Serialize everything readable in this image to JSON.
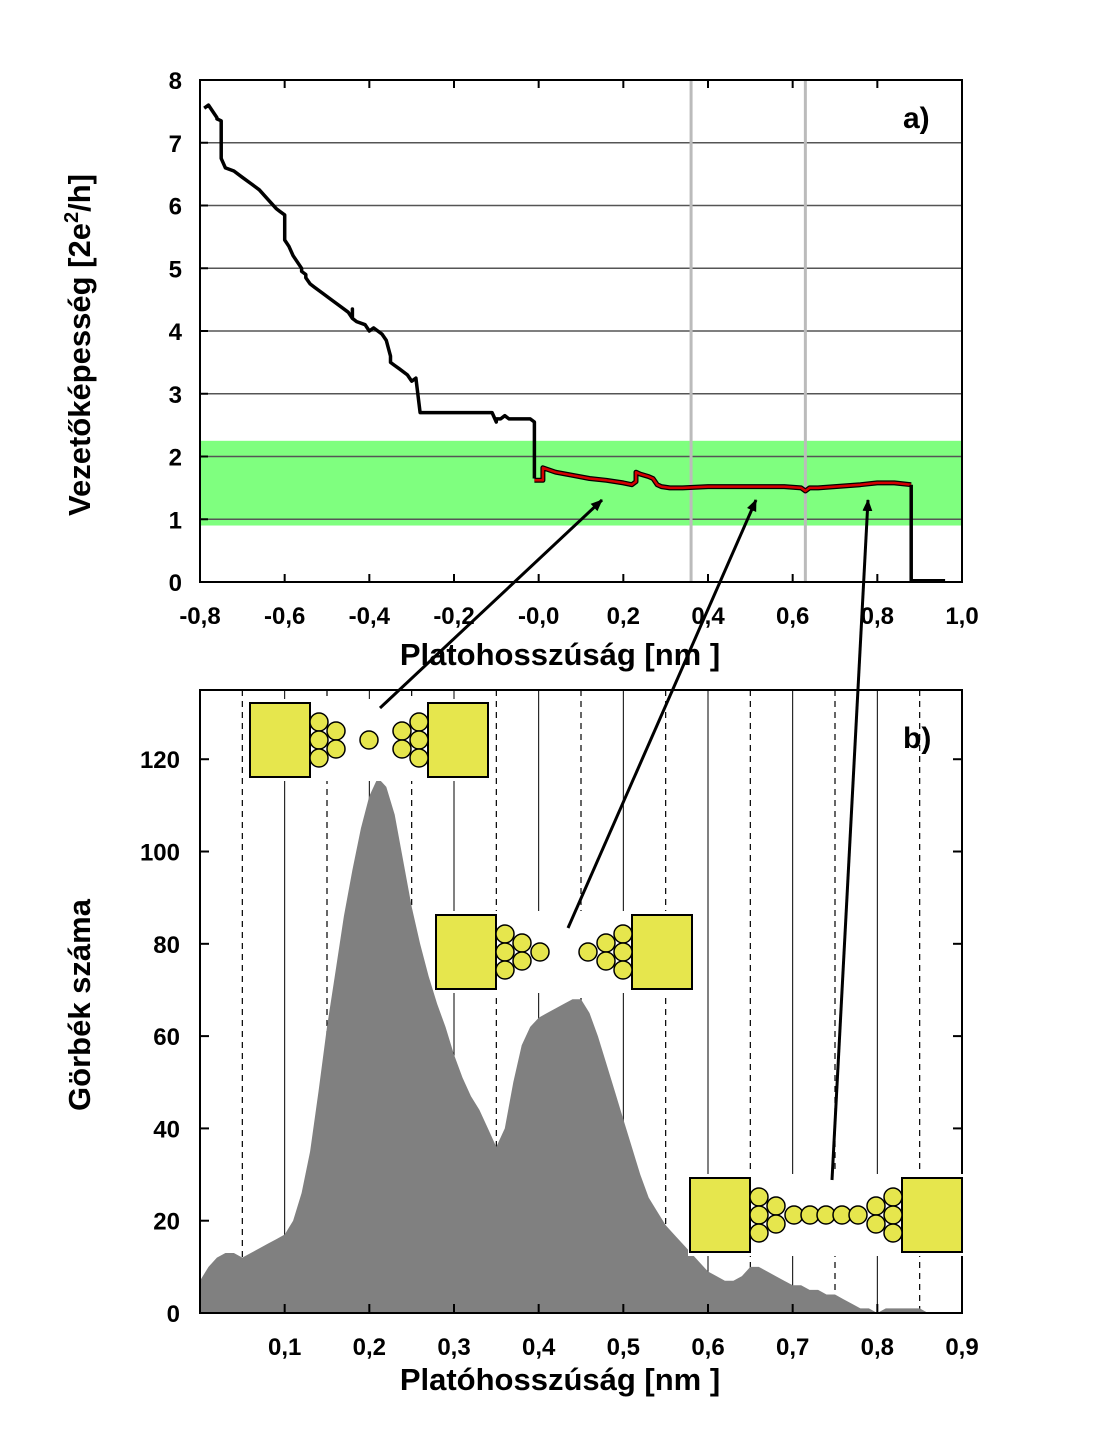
{
  "chart_data": [
    {
      "type": "line",
      "panel_label": "a)",
      "xlabel": "Platohosszúság [nm ]",
      "ylabel_main": "Vezetőképesség [2e",
      "ylabel_sup": "2",
      "ylabel_end": "/h]",
      "xlim": [
        -0.8,
        1.0
      ],
      "ylim": [
        0,
        8
      ],
      "xticks": [
        "-0,8",
        "-0,6",
        "-0,4",
        "-0,2",
        "-0,0",
        "0,2",
        "0,4",
        "0,6",
        "0,8",
        "1,0"
      ],
      "yticks": [
        "0",
        "1",
        "2",
        "3",
        "4",
        "5",
        "6",
        "7",
        "8"
      ],
      "highlight_band": {
        "y_range": [
          0.9,
          2.25
        ],
        "color": "#7fff7f"
      },
      "vertical_markers": [
        0.36,
        0.63
      ],
      "colors": {
        "pre_plateau": "#000000",
        "plateau": "#d40000",
        "band": "#7fff7f",
        "marker": "#bbbbbb"
      },
      "series": [
        {
          "x": [
            -0.79,
            -0.78,
            -0.77,
            -0.76,
            -0.76,
            -0.75,
            -0.75,
            -0.74,
            -0.72,
            -0.7,
            -0.68,
            -0.66,
            -0.64,
            -0.62,
            -0.61,
            -0.6,
            -0.6,
            -0.59,
            -0.58,
            -0.56,
            -0.56,
            -0.55,
            -0.55,
            -0.54,
            -0.53,
            -0.51,
            -0.49,
            -0.47,
            -0.45,
            -0.44,
            -0.44,
            -0.44,
            -0.43,
            -0.41,
            -0.4,
            -0.39,
            -0.38,
            -0.37,
            -0.36,
            -0.35,
            -0.35,
            -0.34,
            -0.33,
            -0.31,
            -0.3,
            -0.29,
            -0.28,
            -0.27,
            -0.27,
            -0.24,
            -0.2,
            -0.16,
            -0.12,
            -0.11,
            -0.1,
            -0.1,
            -0.09,
            -0.08,
            -0.07,
            -0.06,
            -0.04,
            -0.02,
            -0.01,
            -0.01,
            -0.01
          ],
          "y": [
            7.55,
            7.6,
            7.5,
            7.4,
            7.38,
            7.35,
            6.75,
            6.6,
            6.55,
            6.45,
            6.35,
            6.25,
            6.1,
            5.95,
            5.9,
            5.85,
            5.45,
            5.35,
            5.2,
            5.0,
            4.95,
            4.9,
            4.85,
            4.75,
            4.7,
            4.6,
            4.5,
            4.4,
            4.3,
            4.2,
            4.35,
            4.2,
            4.15,
            4.1,
            4.0,
            4.05,
            4.0,
            3.95,
            3.85,
            3.6,
            3.5,
            3.45,
            3.4,
            3.3,
            3.2,
            3.25,
            2.7,
            2.7,
            2.7,
            2.7,
            2.7,
            2.7,
            2.7,
            2.7,
            2.55,
            2.6,
            2.6,
            2.65,
            2.6,
            2.6,
            2.6,
            2.6,
            2.55,
            1.65,
            1.65
          ]
        },
        {
          "x": [
            -0.01,
            0.01,
            0.01,
            0.04,
            0.08,
            0.12,
            0.16,
            0.2,
            0.22,
            0.23,
            0.23,
            0.24,
            0.26,
            0.27,
            0.28,
            0.29,
            0.31,
            0.34,
            0.4,
            0.46,
            0.52,
            0.58,
            0.62,
            0.63,
            0.64,
            0.66,
            0.7,
            0.76,
            0.8,
            0.84,
            0.88
          ],
          "y": [
            1.62,
            1.62,
            1.82,
            1.75,
            1.7,
            1.65,
            1.62,
            1.58,
            1.55,
            1.6,
            1.75,
            1.72,
            1.68,
            1.65,
            1.55,
            1.52,
            1.5,
            1.5,
            1.52,
            1.52,
            1.52,
            1.52,
            1.5,
            1.45,
            1.5,
            1.5,
            1.52,
            1.55,
            1.58,
            1.58,
            1.55
          ]
        },
        {
          "x": [
            0.88,
            0.88,
            0.89,
            0.96
          ],
          "y": [
            1.55,
            0.02,
            0.02,
            0.02
          ]
        }
      ]
    },
    {
      "type": "area",
      "panel_label": "b)",
      "xlabel": "Platóhosszúság [nm ]",
      "ylabel": "Görbék száma",
      "xlim": [
        0.0,
        0.9
      ],
      "ylim": [
        0,
        135
      ],
      "xticks": [
        "0,1",
        "0,2",
        "0,3",
        "0,4",
        "0,5",
        "0,6",
        "0,7",
        "0,8",
        "0,9"
      ],
      "yticks": [
        "0",
        "20",
        "40",
        "60",
        "80",
        "100",
        "120"
      ],
      "grid_solid": [
        0.1,
        0.2,
        0.3,
        0.4,
        0.5,
        0.6,
        0.7,
        0.8
      ],
      "grid_dashed": [
        0.05,
        0.15,
        0.25,
        0.35,
        0.45,
        0.55,
        0.65,
        0.75,
        0.85
      ],
      "colors": {
        "fill": "#808080"
      },
      "x": [
        0.0,
        0.01,
        0.02,
        0.03,
        0.04,
        0.05,
        0.06,
        0.07,
        0.08,
        0.09,
        0.1,
        0.11,
        0.12,
        0.13,
        0.14,
        0.15,
        0.16,
        0.17,
        0.18,
        0.19,
        0.2,
        0.21,
        0.22,
        0.23,
        0.24,
        0.25,
        0.26,
        0.27,
        0.28,
        0.29,
        0.3,
        0.31,
        0.32,
        0.33,
        0.34,
        0.35,
        0.36,
        0.37,
        0.38,
        0.39,
        0.4,
        0.41,
        0.42,
        0.43,
        0.44,
        0.45,
        0.46,
        0.47,
        0.48,
        0.49,
        0.5,
        0.51,
        0.52,
        0.53,
        0.54,
        0.55,
        0.56,
        0.57,
        0.58,
        0.59,
        0.6,
        0.61,
        0.62,
        0.63,
        0.64,
        0.65,
        0.66,
        0.67,
        0.68,
        0.69,
        0.7,
        0.71,
        0.72,
        0.73,
        0.74,
        0.75,
        0.76,
        0.77,
        0.78,
        0.79,
        0.8,
        0.81,
        0.82,
        0.83,
        0.84,
        0.85,
        0.86,
        0.87,
        0.88,
        0.89,
        0.9
      ],
      "values": [
        7,
        10,
        12,
        13,
        13,
        12,
        13,
        14,
        15,
        16,
        17,
        20,
        26,
        35,
        48,
        62,
        74,
        86,
        96,
        105,
        112,
        116,
        114,
        108,
        98,
        88,
        80,
        73,
        67,
        62,
        56,
        51,
        47,
        44,
        40,
        36,
        40,
        50,
        58,
        62,
        64,
        65,
        66,
        67,
        68,
        68,
        65,
        60,
        54,
        48,
        42,
        36,
        30,
        25,
        22,
        19,
        17,
        15,
        13,
        11,
        9,
        8,
        7,
        7,
        8,
        10,
        10,
        9,
        8,
        7,
        6,
        6,
        5,
        5,
        4,
        4,
        3,
        2,
        1,
        1,
        0,
        1,
        1,
        1,
        1,
        1,
        0,
        0,
        0,
        0,
        0
      ]
    }
  ],
  "annotations": {
    "arrows_from_contacts_to_plateau": [
      {
        "contact_atoms_in_chain": 1,
        "plateau_point": [
          0.15,
          1.25
        ]
      },
      {
        "contact_atoms_in_chain": 2,
        "plateau_point": [
          0.5,
          1.25
        ]
      },
      {
        "contact_atoms_in_chain": 5,
        "plateau_point": [
          0.77,
          1.25
        ]
      }
    ],
    "contact_colors": {
      "electrode": "#e6e64d",
      "atom": "#e6e64d",
      "outline": "#000000"
    }
  }
}
